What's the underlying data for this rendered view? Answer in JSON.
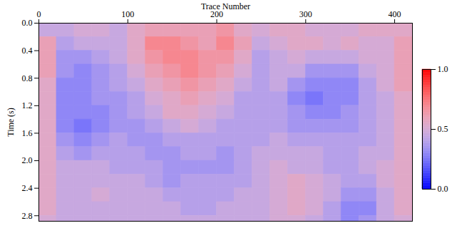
{
  "chart_data": {
    "type": "heatmap",
    "x_label": "Trace Number",
    "y_label": "Time (s)",
    "xlim": [
      0,
      420
    ],
    "xticks": [
      0,
      100,
      200,
      300,
      400
    ],
    "ylim": [
      0,
      2.88
    ],
    "yticks": [
      {
        "value": 0,
        "label": "0.0"
      },
      {
        "value": 0.4,
        "label": "0.4"
      },
      {
        "value": 0.8,
        "label": "0.8"
      },
      {
        "value": 1.2,
        "label": "1.2"
      },
      {
        "value": 1.6,
        "label": "1.6"
      },
      {
        "value": 2.0,
        "label": "2.0"
      },
      {
        "value": 2.4,
        "label": "2.4"
      },
      {
        "value": 2.8,
        "label": "2.8"
      }
    ],
    "trace_bins": [
      0,
      20,
      40,
      60,
      80,
      100,
      120,
      140,
      160,
      180,
      200,
      220,
      240,
      260,
      280,
      300,
      320,
      340,
      360,
      380,
      400,
      420
    ],
    "time_bins": [
      0,
      0.2,
      0.4,
      0.6,
      0.8,
      1.0,
      1.2,
      1.4,
      1.6,
      1.8,
      2.0,
      2.2,
      2.4,
      2.6,
      2.8,
      2.88
    ],
    "values": [
      [
        0.45,
        0.45,
        0.5,
        0.5,
        0.45,
        0.55,
        0.6,
        0.6,
        0.6,
        0.6,
        0.65,
        0.55,
        0.5,
        0.55,
        0.55,
        0.5,
        0.5,
        0.5,
        0.55,
        0.55,
        0.55
      ],
      [
        0.6,
        0.4,
        0.45,
        0.45,
        0.45,
        0.55,
        0.7,
        0.7,
        0.65,
        0.6,
        0.7,
        0.6,
        0.45,
        0.5,
        0.55,
        0.55,
        0.5,
        0.55,
        0.5,
        0.5,
        0.6
      ],
      [
        0.6,
        0.35,
        0.35,
        0.4,
        0.45,
        0.55,
        0.65,
        0.7,
        0.7,
        0.65,
        0.65,
        0.55,
        0.4,
        0.45,
        0.5,
        0.45,
        0.45,
        0.45,
        0.5,
        0.5,
        0.6
      ],
      [
        0.6,
        0.35,
        0.3,
        0.35,
        0.4,
        0.5,
        0.6,
        0.65,
        0.7,
        0.65,
        0.6,
        0.5,
        0.4,
        0.45,
        0.45,
        0.35,
        0.35,
        0.35,
        0.45,
        0.5,
        0.6
      ],
      [
        0.55,
        0.3,
        0.3,
        0.35,
        0.4,
        0.45,
        0.55,
        0.6,
        0.65,
        0.6,
        0.55,
        0.45,
        0.4,
        0.45,
        0.35,
        0.3,
        0.3,
        0.3,
        0.4,
        0.5,
        0.6
      ],
      [
        0.55,
        0.3,
        0.3,
        0.35,
        0.35,
        0.4,
        0.5,
        0.55,
        0.6,
        0.55,
        0.5,
        0.4,
        0.4,
        0.4,
        0.3,
        0.25,
        0.3,
        0.3,
        0.4,
        0.45,
        0.55
      ],
      [
        0.55,
        0.3,
        0.3,
        0.3,
        0.35,
        0.4,
        0.45,
        0.55,
        0.55,
        0.5,
        0.45,
        0.4,
        0.4,
        0.4,
        0.35,
        0.3,
        0.3,
        0.35,
        0.4,
        0.45,
        0.55
      ],
      [
        0.55,
        0.3,
        0.25,
        0.3,
        0.35,
        0.35,
        0.4,
        0.45,
        0.5,
        0.45,
        0.4,
        0.4,
        0.4,
        0.4,
        0.35,
        0.35,
        0.35,
        0.35,
        0.4,
        0.45,
        0.55
      ],
      [
        0.55,
        0.35,
        0.3,
        0.35,
        0.4,
        0.35,
        0.35,
        0.4,
        0.4,
        0.4,
        0.4,
        0.4,
        0.4,
        0.45,
        0.4,
        0.4,
        0.4,
        0.4,
        0.4,
        0.45,
        0.55
      ],
      [
        0.55,
        0.4,
        0.35,
        0.4,
        0.4,
        0.4,
        0.35,
        0.35,
        0.4,
        0.4,
        0.35,
        0.4,
        0.45,
        0.45,
        0.45,
        0.45,
        0.4,
        0.4,
        0.45,
        0.45,
        0.55
      ],
      [
        0.55,
        0.45,
        0.45,
        0.45,
        0.4,
        0.4,
        0.4,
        0.35,
        0.35,
        0.35,
        0.35,
        0.4,
        0.45,
        0.5,
        0.45,
        0.45,
        0.4,
        0.4,
        0.45,
        0.5,
        0.55
      ],
      [
        0.55,
        0.45,
        0.45,
        0.45,
        0.45,
        0.45,
        0.4,
        0.35,
        0.4,
        0.4,
        0.4,
        0.4,
        0.45,
        0.5,
        0.55,
        0.5,
        0.45,
        0.4,
        0.4,
        0.5,
        0.55
      ],
      [
        0.55,
        0.45,
        0.45,
        0.5,
        0.45,
        0.45,
        0.45,
        0.4,
        0.4,
        0.4,
        0.4,
        0.45,
        0.45,
        0.5,
        0.55,
        0.5,
        0.45,
        0.35,
        0.35,
        0.45,
        0.55
      ],
      [
        0.55,
        0.45,
        0.45,
        0.45,
        0.45,
        0.45,
        0.45,
        0.45,
        0.4,
        0.4,
        0.45,
        0.45,
        0.45,
        0.5,
        0.55,
        0.5,
        0.4,
        0.3,
        0.3,
        0.45,
        0.55
      ],
      [
        0.5,
        0.45,
        0.45,
        0.45,
        0.45,
        0.45,
        0.45,
        0.45,
        0.45,
        0.45,
        0.45,
        0.45,
        0.45,
        0.5,
        0.5,
        0.45,
        0.4,
        0.3,
        0.35,
        0.45,
        0.5
      ]
    ],
    "colorbar": {
      "lim": [
        0,
        1
      ],
      "ticks": [
        {
          "value": 0,
          "label": "0.0"
        },
        {
          "value": 0.5,
          "label": "0.5"
        },
        {
          "value": 1,
          "label": "1.0"
        }
      ],
      "colors": [
        "#0000ff",
        "#ffffff",
        "#ff0000"
      ]
    }
  }
}
